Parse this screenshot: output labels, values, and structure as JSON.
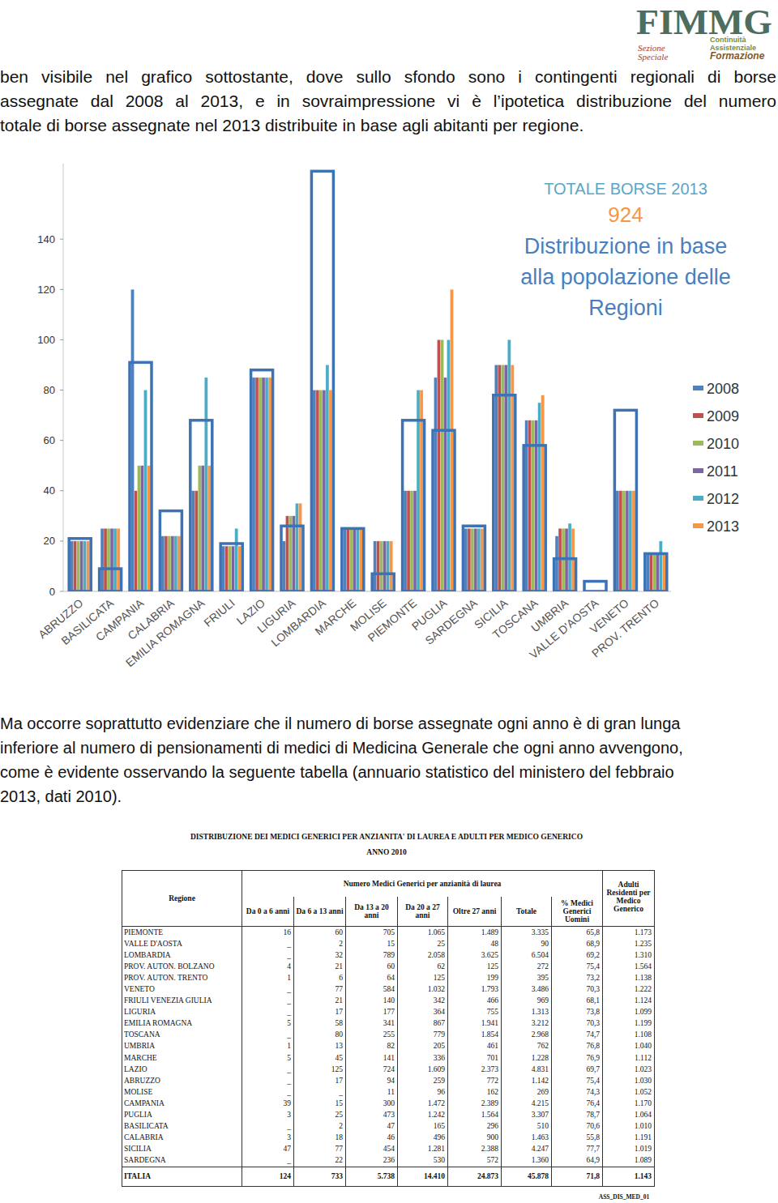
{
  "logo": {
    "title": "FIMMG",
    "left_lines": [
      "Sezione",
      "Speciale"
    ],
    "right_lines": [
      "Continuità",
      "Assistenziale",
      "Formazione"
    ]
  },
  "paragraphs": [
    {
      "lines": [
        "ben visibile nel grafico sottostante, dove sullo sfondo sono i contingenti regionali di borse",
        "assegnate dal 2008 al 2013, e in sovraimpressione vi è l’ipotetica distribuzione del numero",
        "totale di borse assegnate nel 2013 distribuite in base agli abitanti per regione."
      ]
    },
    {
      "lines": [
        "Ma occorre soprattutto evidenziare che il numero di borse assegnate ogni anno è di gran lunga",
        "inferiore al numero di pensionamenti di medici di Medicina Generale che ogni anno avvengono,",
        "come è evidente osservando la seguente tabella (annuario statistico del ministero del febbraio",
        "2013, dati 2010)."
      ]
    }
  ],
  "chart_data": {
    "type": "bar",
    "categories": [
      "ABRUZZO",
      "BASILICATA",
      "CAMPANIA",
      "CALABRIA",
      "EMILIA ROMAGNA",
      "FRIULI",
      "LAZIO",
      "LIGURIA",
      "LOMBARDIA",
      "MARCHE",
      "MOLISE",
      "PIEMONTE",
      "PUGLIA",
      "SARDEGNA",
      "SICILIA",
      "TOSCANA",
      "UMBRIA",
      "VALLE D'AOSTA",
      "VENETO",
      "PROV. TRENTO"
    ],
    "series": [
      {
        "name": "2008",
        "color": "#4f81bd",
        "values": [
          20,
          25,
          120,
          22,
          40,
          18,
          85,
          20,
          80,
          25,
          20,
          40,
          85,
          25,
          90,
          68,
          22,
          0,
          40,
          15
        ]
      },
      {
        "name": "2009",
        "color": "#c0504d",
        "values": [
          20,
          25,
          40,
          22,
          40,
          18,
          85,
          30,
          80,
          25,
          20,
          40,
          100,
          25,
          90,
          68,
          25,
          0,
          40,
          15
        ]
      },
      {
        "name": "2010",
        "color": "#9bbb59",
        "values": [
          20,
          25,
          50,
          22,
          50,
          18,
          85,
          30,
          80,
          25,
          20,
          40,
          100,
          25,
          90,
          68,
          25,
          0,
          40,
          15
        ]
      },
      {
        "name": "2011",
        "color": "#8064a2",
        "values": [
          20,
          25,
          50,
          22,
          50,
          18,
          85,
          30,
          80,
          25,
          20,
          40,
          85,
          25,
          90,
          68,
          25,
          0,
          40,
          15
        ]
      },
      {
        "name": "2012",
        "color": "#4bacc6",
        "values": [
          20,
          25,
          80,
          22,
          85,
          25,
          85,
          35,
          90,
          25,
          20,
          80,
          100,
          25,
          100,
          75,
          27,
          0,
          40,
          20
        ]
      },
      {
        "name": "2013",
        "color": "#f79646",
        "values": [
          20,
          25,
          50,
          22,
          50,
          18,
          85,
          35,
          80,
          25,
          20,
          80,
          120,
          25,
          90,
          78,
          25,
          0,
          40,
          15
        ]
      },
      {
        "type": "outline",
        "color": "#3d72b4",
        "values": [
          21,
          9,
          91,
          32,
          68,
          19,
          88,
          26,
          167,
          25,
          7,
          68,
          64,
          26,
          78,
          58,
          13,
          4,
          72,
          15
        ]
      }
    ],
    "ylim": [
      0,
      170
    ],
    "yticks": [
      0,
      20,
      40,
      60,
      80,
      100,
      120,
      140
    ],
    "grid": false,
    "legend": "right",
    "annotation": {
      "title": "TOTALE BORSE 2013",
      "total": 924,
      "lines": [
        "Distribuzione in base",
        "alla popolazione delle",
        "Regioni"
      ]
    }
  },
  "table": {
    "title": "DISTRIBUZIONE DEI MEDICI GENERICI PER ANZIANITA' DI LAUREA E ADULTI PER MEDICO GENERICO",
    "subtitle": "ANNO 2010",
    "header": {
      "region": "Regione",
      "group": "Numero Medici Generici per anzianità di laurea",
      "columns": [
        "Da 0 a 6 anni",
        "Da 6 a 13 anni",
        "Da 13 a 20 anni",
        "Da 20 a 27 anni",
        "Oltre 27 anni",
        "Totale",
        "% Medici Generici Uomini"
      ],
      "last": "Adulti Residenti per Medico Generico"
    },
    "rows": [
      [
        "PIEMONTE",
        "16",
        "60",
        "705",
        "1.065",
        "1.489",
        "3.335",
        "65,8",
        "1.173"
      ],
      [
        "VALLE D'AOSTA",
        "_",
        "2",
        "15",
        "25",
        "48",
        "90",
        "68,9",
        "1.235"
      ],
      [
        "LOMBARDIA",
        "_",
        "32",
        "789",
        "2.058",
        "3.625",
        "6.504",
        "69,2",
        "1.310"
      ],
      [
        "PROV. AUTON. BOLZANO",
        "4",
        "21",
        "60",
        "62",
        "125",
        "272",
        "75,4",
        "1.564"
      ],
      [
        "PROV. AUTON. TRENTO",
        "1",
        "6",
        "64",
        "125",
        "199",
        "395",
        "73,2",
        "1.138"
      ],
      [
        "VENETO",
        "_",
        "77",
        "584",
        "1.032",
        "1.793",
        "3.486",
        "70,3",
        "1.222"
      ],
      [
        "FRIULI VENEZIA GIULIA",
        "_",
        "21",
        "140",
        "342",
        "466",
        "969",
        "68,1",
        "1.124"
      ],
      [
        "LIGURIA",
        "_",
        "17",
        "177",
        "364",
        "755",
        "1.313",
        "73,8",
        "1.099"
      ],
      [
        "EMILIA ROMAGNA",
        "5",
        "58",
        "341",
        "867",
        "1.941",
        "3.212",
        "70,3",
        "1.199"
      ],
      [
        "TOSCANA",
        "_",
        "80",
        "255",
        "779",
        "1.854",
        "2.968",
        "74,7",
        "1.108"
      ],
      [
        "UMBRIA",
        "1",
        "13",
        "82",
        "205",
        "461",
        "762",
        "76,8",
        "1.040"
      ],
      [
        "MARCHE",
        "5",
        "45",
        "141",
        "336",
        "701",
        "1.228",
        "76,9",
        "1.112"
      ],
      [
        "LAZIO",
        "_",
        "125",
        "724",
        "1.609",
        "2.373",
        "4.831",
        "69,7",
        "1.023"
      ],
      [
        "ABRUZZO",
        "_",
        "17",
        "94",
        "259",
        "772",
        "1.142",
        "75,4",
        "1.030"
      ],
      [
        "MOLISE",
        "_",
        "_",
        "11",
        "96",
        "162",
        "269",
        "74,3",
        "1.052"
      ],
      [
        "CAMPANIA",
        "39",
        "15",
        "300",
        "1.472",
        "2.389",
        "4.215",
        "76,4",
        "1.170"
      ],
      [
        "PUGLIA",
        "3",
        "25",
        "473",
        "1.242",
        "1.564",
        "3.307",
        "78,7",
        "1.064"
      ],
      [
        "BASILICATA",
        "_",
        "2",
        "47",
        "165",
        "296",
        "510",
        "70,6",
        "1.010"
      ],
      [
        "CALABRIA",
        "3",
        "18",
        "46",
        "496",
        "900",
        "1.463",
        "55,8",
        "1.191"
      ],
      [
        "SICILIA",
        "47",
        "77",
        "454",
        "1.281",
        "2.388",
        "4.247",
        "77,7",
        "1.019"
      ],
      [
        "SARDEGNA",
        "_",
        "22",
        "236",
        "530",
        "572",
        "1.360",
        "64,9",
        "1.089"
      ]
    ],
    "total": [
      "ITALIA",
      "124",
      "733",
      "5.738",
      "14.410",
      "24.873",
      "45.878",
      "71,8",
      "1.143"
    ],
    "code": "ASS_DIS_MED_01"
  }
}
